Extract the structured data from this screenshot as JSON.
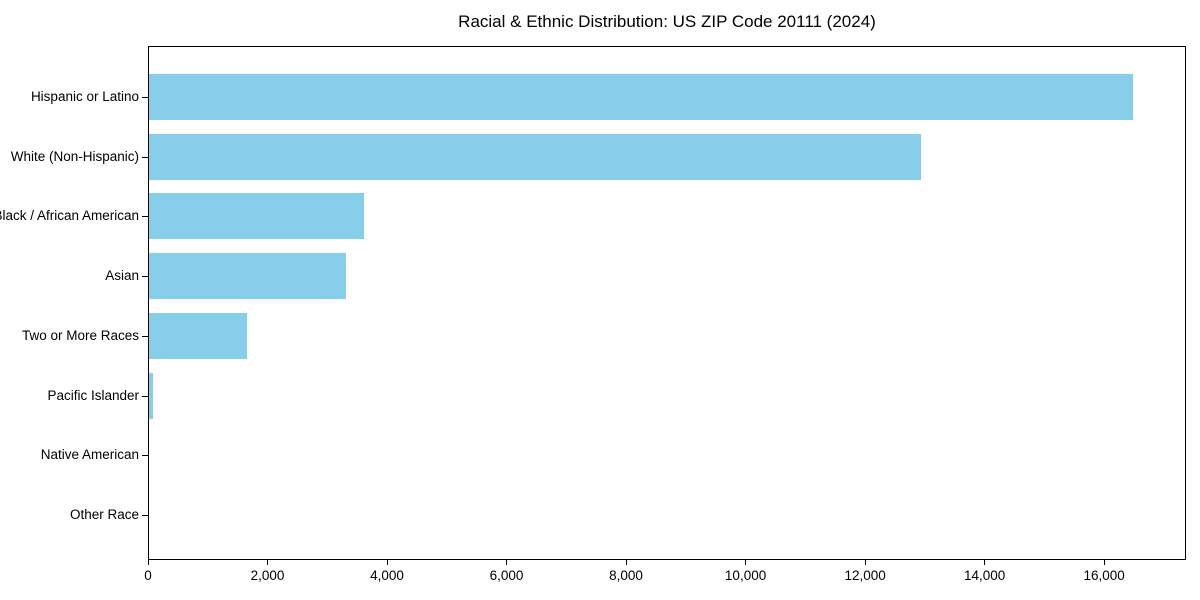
{
  "title": "Racial & Ethnic Distribution: US ZIP Code 20111 (2024)",
  "chart_data": {
    "type": "bar",
    "orientation": "horizontal",
    "title": "Racial & Ethnic Distribution: US ZIP Code 20111 (2024)",
    "categories": [
      "Hispanic or Latino",
      "White (Non-Hispanic)",
      "Black / African American",
      "Asian",
      "Two or More Races",
      "Pacific Islander",
      "Native American",
      "Other Race"
    ],
    "values": [
      16500,
      12950,
      3600,
      3300,
      1650,
      70,
      0,
      0
    ],
    "xlabel": "",
    "ylabel": "",
    "xlim": [
      0,
      17370
    ],
    "x_ticks": [
      0,
      2000,
      4000,
      6000,
      8000,
      10000,
      12000,
      14000,
      16000
    ],
    "x_tick_labels": [
      "0",
      "2,000",
      "4,000",
      "6,000",
      "8,000",
      "10,000",
      "12,000",
      "14,000",
      "16,000"
    ],
    "bar_color": "#87CEEB",
    "axis_color": "#000000",
    "grid": false,
    "legend": null
  }
}
